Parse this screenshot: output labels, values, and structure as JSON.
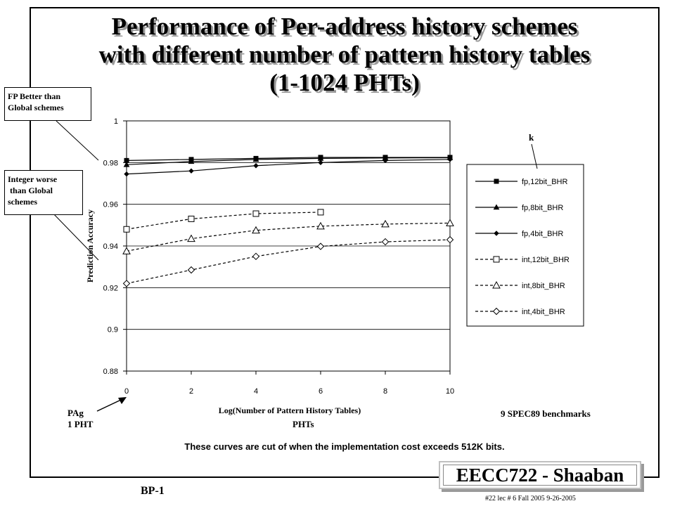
{
  "title": {
    "line1": "Performance of Per-address history schemes",
    "line2": "with different number of pattern history tables",
    "line3": "(1-1024 PHTs)"
  },
  "callouts": {
    "fp_better": [
      "FP Better than",
      "Global schemes"
    ],
    "int_worse": [
      "Integer worse",
      " than Global",
      "schemes"
    ]
  },
  "chart_data": {
    "type": "line",
    "xlabel": "Log(Number of Pattern History Tables)",
    "ylabel": "Prediction Accuracy",
    "xlim": [
      0,
      10
    ],
    "ylim": [
      0.88,
      1
    ],
    "xticks": [
      0,
      2,
      4,
      6,
      8,
      10
    ],
    "yticks": [
      0.88,
      0.9,
      0.92,
      0.94,
      0.96,
      0.98,
      1
    ],
    "ytick_labels": [
      "0.88",
      "0.9",
      "0.92",
      "0.94",
      "0.96",
      "0.98",
      "1"
    ],
    "xtick_labels": [
      "0",
      "2",
      "4",
      "6",
      "8",
      "10"
    ],
    "grid": "horizontal",
    "legend_position": "right",
    "series": [
      {
        "name": "fp,12bit_BHR",
        "x": [
          0,
          2,
          4,
          6,
          8,
          10
        ],
        "y": [
          0.981,
          0.9815,
          0.982,
          0.9825,
          0.9825,
          0.9825
        ],
        "marker": "square-filled",
        "dash": "solid"
      },
      {
        "name": "fp,8bit_BHR",
        "x": [
          0,
          2,
          4,
          6,
          8,
          10
        ],
        "y": [
          0.979,
          0.9805,
          0.9815,
          0.982,
          0.9822,
          0.9823
        ],
        "marker": "triangle-filled",
        "dash": "solid"
      },
      {
        "name": "fp,4bit_BHR",
        "x": [
          0,
          2,
          4,
          6,
          8,
          10
        ],
        "y": [
          0.9745,
          0.976,
          0.9785,
          0.98,
          0.981,
          0.9815
        ],
        "marker": "diamond-filled",
        "dash": "solid"
      },
      {
        "name": "int,12bit_BHR",
        "x": [
          0,
          2,
          4,
          6
        ],
        "y": [
          0.948,
          0.953,
          0.9555,
          0.9562
        ],
        "marker": "square-open",
        "dash": "dashed"
      },
      {
        "name": "int,8bit_BHR",
        "x": [
          0,
          2,
          4,
          6,
          8,
          10
        ],
        "y": [
          0.9375,
          0.9435,
          0.9475,
          0.9495,
          0.9505,
          0.951
        ],
        "marker": "triangle-open",
        "dash": "dashed"
      },
      {
        "name": "int,4bit_BHR",
        "x": [
          0,
          2,
          4,
          6,
          8,
          10
        ],
        "y": [
          0.922,
          0.9285,
          0.935,
          0.9398,
          0.942,
          0.943
        ],
        "marker": "diamond-open",
        "dash": "dashed"
      }
    ]
  },
  "labels": {
    "k": "k",
    "pag_line1": "PAg",
    "pag_line2": "1 PHT",
    "phts": "PHTs",
    "benchmarks": "9 SPEC89 benchmarks",
    "footnote": "These curves are cut of when the implementation cost exceeds 512K bits.",
    "brand": "EECC722 - Shaaban",
    "bp": "BP-1",
    "slide_meta": "#22   lec # 6   Fall 2005   9-26-2005"
  }
}
